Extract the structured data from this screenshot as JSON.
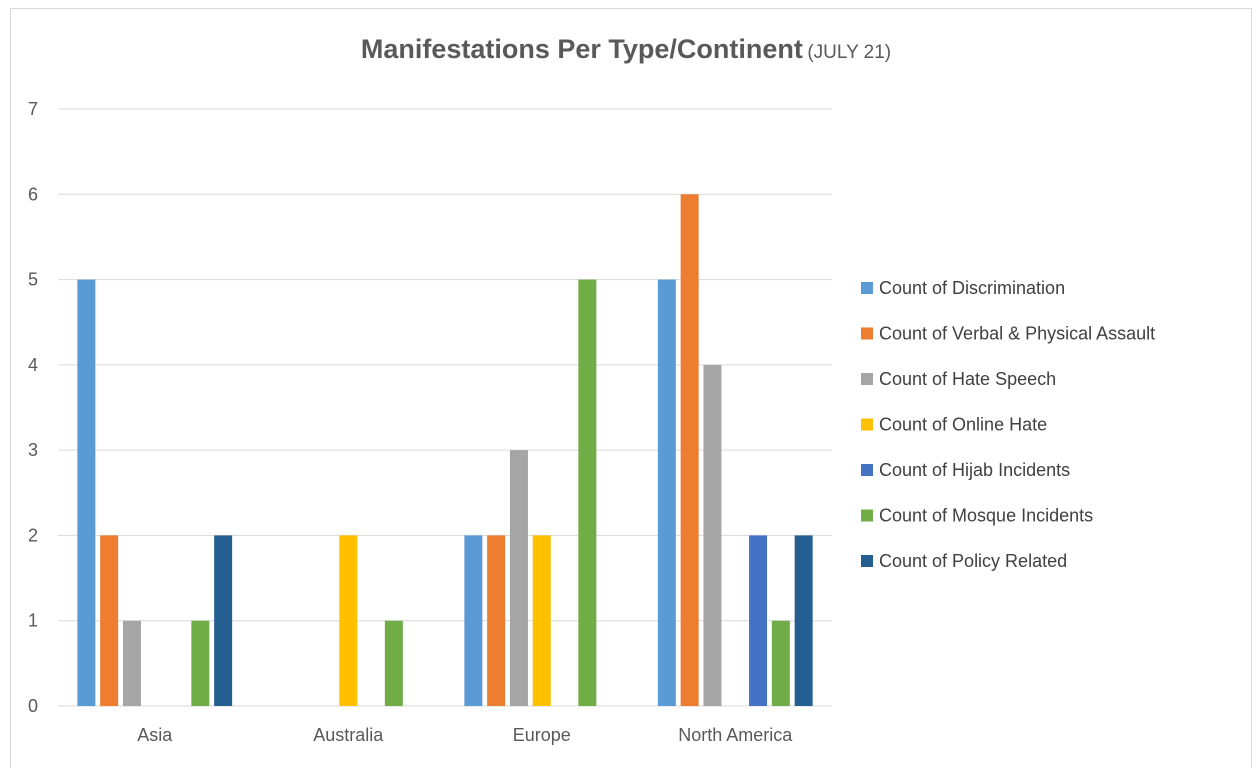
{
  "chart_data": {
    "type": "bar",
    "title": "Manifestations Per Type/Continent",
    "subtitle": "(JULY 21)",
    "xlabel": "",
    "ylabel": "",
    "ylim": [
      0,
      7
    ],
    "yticks": [
      "0",
      "1",
      "2",
      "3",
      "4",
      "5",
      "6",
      "7"
    ],
    "categories": [
      "Asia",
      "Australia",
      "Europe",
      "North America"
    ],
    "grid": true,
    "legend_position": "right",
    "series": [
      {
        "name": "Count of Discrimination",
        "color": "#5b9bd5",
        "values": [
          5,
          null,
          2,
          5
        ]
      },
      {
        "name": "Count of Verbal & Physical Assault",
        "color": "#ed7d31",
        "values": [
          2,
          null,
          2,
          6
        ]
      },
      {
        "name": "Count of Hate Speech",
        "color": "#a5a5a5",
        "values": [
          1,
          null,
          3,
          4
        ]
      },
      {
        "name": "Count of Online Hate",
        "color": "#ffc000",
        "values": [
          null,
          2,
          2,
          null
        ]
      },
      {
        "name": "Count of Hijab Incidents",
        "color": "#4472c4",
        "values": [
          null,
          null,
          null,
          2
        ]
      },
      {
        "name": "Count of Mosque Incidents",
        "color": "#70ad47",
        "values": [
          1,
          1,
          5,
          1
        ]
      },
      {
        "name": "Count of Policy Related",
        "color": "#255e91",
        "values": [
          2,
          null,
          null,
          2
        ]
      }
    ]
  }
}
